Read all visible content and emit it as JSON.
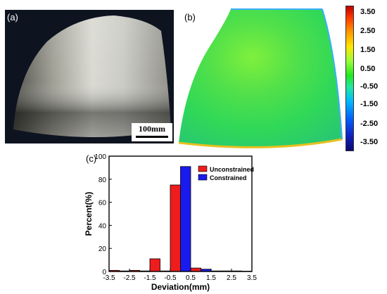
{
  "panels": {
    "a_label": "(a)",
    "b_label": "(b)",
    "c_label": "(c)",
    "scale_bar_text": "100mm"
  },
  "colorbar": {
    "ticks": [
      "3.50",
      "2.50",
      "1.50",
      "0.50",
      "-0.50",
      "-1.50",
      "-2.50",
      "-3.50"
    ],
    "colors": [
      "#c00000",
      "#ff3a00",
      "#ff9a00",
      "#ffe600",
      "#9aff3a",
      "#1eea1e",
      "#23e8a0",
      "#00b8ff",
      "#0060ff",
      "#1020c0",
      "#0a0a70"
    ]
  },
  "chart_data": {
    "type": "bar",
    "xlabel": "Deviation(mm)",
    "ylabel": "Percent(%)",
    "xlim": [
      -3.5,
      3.5
    ],
    "ylim": [
      0,
      100
    ],
    "xticks": [
      "-3.5",
      "-2.5",
      "-1.5",
      "-0.5",
      "0.5",
      "1.5",
      "2.5",
      "3.5"
    ],
    "yticks": [
      "0",
      "20",
      "40",
      "60",
      "80",
      "100"
    ],
    "bin_width": 0.5,
    "legend_position": "top-right",
    "series": [
      {
        "name": "Unconstrained",
        "color": "#ee1c1c",
        "bins": [
          -3.0,
          -2.0,
          -1.0,
          0.0,
          1.0,
          2.0,
          3.0
        ],
        "values": [
          1,
          1,
          11,
          75,
          3,
          0.5,
          0.5
        ]
      },
      {
        "name": "Constrained",
        "color": "#1a1aee",
        "bins": [
          -3.0,
          -2.0,
          -1.0,
          0.0,
          1.0,
          2.0,
          3.0
        ],
        "values": [
          0.5,
          0.5,
          0.5,
          91,
          2,
          0.5,
          0.3
        ]
      }
    ]
  }
}
